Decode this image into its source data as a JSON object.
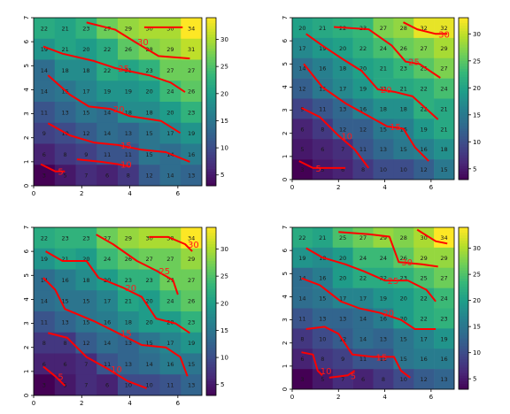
{
  "chart_data": [
    {
      "type": "heatmap",
      "title": "",
      "xlabel": "",
      "ylabel": "",
      "xlim": [
        0,
        7
      ],
      "ylim": [
        0,
        7
      ],
      "x_ticks": [
        "0",
        "2",
        "4",
        "6"
      ],
      "y_ticks": [
        "0",
        "1",
        "2",
        "3",
        "4",
        "5",
        "6",
        "7"
      ],
      "colorbar_ticks": [
        "5",
        "10",
        "15",
        "20",
        "25",
        "30"
      ],
      "value_range": [
        3,
        34
      ],
      "grid_values": [
        [
          "22",
          "21",
          "23",
          "27",
          "29",
          "30",
          "30",
          "34"
        ],
        [
          "19",
          "21",
          "20",
          "22",
          "26",
          "28",
          "29",
          "31"
        ],
        [
          "14",
          "18",
          "18",
          "22",
          "21",
          "23",
          "27",
          "27"
        ],
        [
          "14",
          "15",
          "17",
          "19",
          "19",
          "20",
          "24",
          "26"
        ],
        [
          "11",
          "13",
          "15",
          "14",
          "18",
          "18",
          "20",
          "23"
        ],
        [
          "9",
          "10",
          "12",
          "14",
          "13",
          "15",
          "17",
          "19"
        ],
        [
          "6",
          "8",
          "9",
          "11",
          "11",
          "15",
          "14",
          "16"
        ],
        [
          "3",
          "5",
          "7",
          "6",
          "8",
          "12",
          "14",
          "13"
        ]
      ],
      "contours": [
        {
          "label": "5",
          "points": [
            [
              0.3,
              0.9
            ],
            [
              0.9,
              0.6
            ],
            [
              1.3,
              0.6
            ]
          ]
        },
        {
          "label": "10",
          "points": [
            [
              1.8,
              1.1
            ],
            [
              2.8,
              1.0
            ],
            [
              3.5,
              0.9
            ],
            [
              4.0,
              0.8
            ]
          ]
        },
        {
          "label": "15",
          "points": [
            [
              0.6,
              2.6
            ],
            [
              1.5,
              2.1
            ],
            [
              2.5,
              1.8
            ],
            [
              3.5,
              1.7
            ],
            [
              4.5,
              1.5
            ],
            [
              5.5,
              1.4
            ],
            [
              6.5,
              1.0
            ]
          ]
        },
        {
          "label": "20",
          "points": [
            [
              0.6,
              4.6
            ],
            [
              1.5,
              3.8
            ],
            [
              2.3,
              3.3
            ],
            [
              3.2,
              3.2
            ],
            [
              4.0,
              2.9
            ],
            [
              5.3,
              2.7
            ],
            [
              6.1,
              2.2
            ]
          ]
        },
        {
          "label": "25",
          "points": [
            [
              0.4,
              5.8
            ],
            [
              1.2,
              5.5
            ],
            [
              2.5,
              5.2
            ],
            [
              3.4,
              4.9
            ],
            [
              4.8,
              4.6
            ],
            [
              5.7,
              4.3
            ],
            [
              6.3,
              3.9
            ]
          ]
        },
        {
          "label": "30",
          "points": [
            [
              2.2,
              6.8
            ],
            [
              3.4,
              6.5
            ],
            [
              4.2,
              6.0
            ],
            [
              5.2,
              5.4
            ],
            [
              6.5,
              5.3
            ]
          ]
        },
        {
          "label": "",
          "points": [
            [
              4.6,
              6.6
            ],
            [
              5.5,
              6.6
            ],
            [
              6.2,
              6.6
            ]
          ]
        }
      ]
    },
    {
      "type": "heatmap",
      "title": "",
      "xlabel": "",
      "ylabel": "",
      "xlim": [
        0,
        7
      ],
      "ylim": [
        0,
        7
      ],
      "x_ticks": [
        "0",
        "2",
        "4",
        "6"
      ],
      "y_ticks": [
        "0",
        "1",
        "2",
        "3",
        "4",
        "5",
        "6",
        "7"
      ],
      "colorbar_ticks": [
        "5",
        "10",
        "15",
        "20",
        "25",
        "30"
      ],
      "value_range": [
        3,
        33
      ],
      "grid_values": [
        [
          "20",
          "21",
          "22",
          "23",
          "27",
          "28",
          "32",
          "32"
        ],
        [
          "17",
          "19",
          "20",
          "22",
          "24",
          "26",
          "27",
          "29"
        ],
        [
          "14",
          "16",
          "18",
          "20",
          "21",
          "23",
          "25",
          "27"
        ],
        [
          "12",
          "15",
          "17",
          "19",
          "21",
          "21",
          "22",
          "24"
        ],
        [
          "9",
          "11",
          "13",
          "16",
          "18",
          "18",
          "22",
          "21"
        ],
        [
          "6",
          "8",
          "12",
          "12",
          "15",
          "16",
          "19",
          "21"
        ],
        [
          "5",
          "6",
          "7",
          "11",
          "13",
          "15",
          "16",
          "18"
        ],
        [
          "3",
          "5",
          "6",
          "8",
          "10",
          "10",
          "12",
          "15"
        ]
      ],
      "contours": [
        {
          "label": "5",
          "points": [
            [
              0.3,
              0.8
            ],
            [
              0.9,
              0.5
            ],
            [
              2.3,
              0.5
            ]
          ]
        },
        {
          "label": "10",
          "points": [
            [
              0.4,
              3.1
            ],
            [
              1.2,
              2.7
            ],
            [
              2.0,
              1.9
            ],
            [
              2.7,
              1.3
            ],
            [
              3.3,
              0.5
            ]
          ]
        },
        {
          "label": "15",
          "points": [
            [
              0.5,
              5.0
            ],
            [
              1.3,
              4.0
            ],
            [
              2.3,
              3.3
            ],
            [
              3.2,
              2.8
            ],
            [
              4.1,
              2.3
            ],
            [
              4.8,
              2.2
            ],
            [
              5.3,
              1.4
            ],
            [
              5.9,
              0.8
            ]
          ]
        },
        {
          "label": "20",
          "points": [
            [
              0.6,
              6.3
            ],
            [
              1.3,
              5.8
            ],
            [
              2.2,
              5.2
            ],
            [
              3.0,
              4.7
            ],
            [
              3.7,
              3.9
            ],
            [
              4.4,
              3.8
            ],
            [
              5.2,
              3.6
            ],
            [
              6.3,
              2.6
            ]
          ]
        },
        {
          "label": "25",
          "points": [
            [
              1.8,
              6.6
            ],
            [
              3.3,
              6.5
            ],
            [
              4.3,
              5.8
            ],
            [
              4.9,
              5.1
            ],
            [
              5.5,
              5.0
            ],
            [
              6.4,
              4.4
            ]
          ]
        },
        {
          "label": "30",
          "points": [
            [
              4.8,
              6.8
            ],
            [
              5.4,
              6.5
            ],
            [
              6.2,
              6.3
            ],
            [
              6.7,
              6.3
            ]
          ]
        }
      ]
    },
    {
      "type": "heatmap",
      "title": "",
      "xlabel": "",
      "ylabel": "",
      "xlim": [
        0,
        7
      ],
      "ylim": [
        0,
        7
      ],
      "x_ticks": [
        "0",
        "2",
        "4",
        "6"
      ],
      "y_ticks": [
        "0",
        "1",
        "2",
        "3",
        "4",
        "5",
        "6",
        "7"
      ],
      "colorbar_ticks": [
        "5",
        "10",
        "15",
        "20",
        "25",
        "30"
      ],
      "value_range": [
        3,
        34
      ],
      "grid_values": [
        [
          "22",
          "23",
          "23",
          "27",
          "29",
          "30",
          "30",
          "34"
        ],
        [
          "19",
          "21",
          "20",
          "24",
          "26",
          "27",
          "27",
          "29"
        ],
        [
          "14",
          "16",
          "18",
          "20",
          "23",
          "23",
          "27",
          "27"
        ],
        [
          "14",
          "15",
          "15",
          "17",
          "21",
          "20",
          "24",
          "26"
        ],
        [
          "11",
          "13",
          "15",
          "16",
          "18",
          "20",
          "20",
          "23"
        ],
        [
          "8",
          "8",
          "12",
          "14",
          "13",
          "15",
          "17",
          "19"
        ],
        [
          "6",
          "6",
          "7",
          "11",
          "13",
          "14",
          "16",
          "15"
        ],
        [
          "3",
          "5",
          "7",
          "6",
          "10",
          "10",
          "11",
          "13"
        ]
      ],
      "contours": [
        {
          "label": "5",
          "points": [
            [
              0.4,
              1.2
            ],
            [
              0.9,
              0.8
            ],
            [
              1.3,
              0.4
            ]
          ]
        },
        {
          "label": "10",
          "points": [
            [
              0.6,
              2.6
            ],
            [
              1.4,
              2.4
            ],
            [
              2.2,
              1.6
            ],
            [
              3.1,
              1.1
            ],
            [
              3.9,
              0.6
            ],
            [
              4.7,
              0.3
            ]
          ]
        },
        {
          "label": "15",
          "points": [
            [
              0.4,
              4.9
            ],
            [
              0.9,
              4.4
            ],
            [
              1.3,
              3.6
            ],
            [
              2.5,
              3.1
            ],
            [
              3.5,
              2.6
            ],
            [
              4.5,
              2.1
            ],
            [
              5.5,
              2.0
            ],
            [
              6.1,
              1.6
            ],
            [
              6.4,
              0.8
            ]
          ]
        },
        {
          "label": "20",
          "points": [
            [
              0.5,
              6.0
            ],
            [
              1.2,
              5.6
            ],
            [
              2.2,
              5.6
            ],
            [
              2.7,
              4.9
            ],
            [
              3.7,
              4.5
            ],
            [
              4.5,
              4.1
            ],
            [
              5.1,
              3.2
            ],
            [
              5.9,
              3.0
            ],
            [
              6.5,
              2.6
            ]
          ]
        },
        {
          "label": "25",
          "points": [
            [
              2.6,
              6.7
            ],
            [
              3.3,
              6.3
            ],
            [
              4.3,
              5.6
            ],
            [
              5.1,
              5.2
            ],
            [
              5.8,
              4.8
            ],
            [
              6.0,
              4.2
            ]
          ]
        },
        {
          "label": "30",
          "points": [
            [
              4.8,
              6.6
            ],
            [
              5.6,
              6.6
            ],
            [
              6.3,
              6.3
            ],
            [
              6.6,
              6.0
            ]
          ]
        }
      ]
    },
    {
      "type": "heatmap",
      "title": "",
      "xlabel": "",
      "ylabel": "",
      "xlim": [
        0,
        7
      ],
      "ylim": [
        0,
        7
      ],
      "x_ticks": [
        "0",
        "2",
        "4",
        "6"
      ],
      "y_ticks": [
        "0",
        "1",
        "2",
        "3",
        "4",
        "5",
        "6",
        "7"
      ],
      "colorbar_ticks": [
        "5",
        "10",
        "15",
        "20",
        "25",
        "30"
      ],
      "value_range": [
        3,
        34
      ],
      "grid_values": [
        [
          "22",
          "21",
          "25",
          "27",
          "29",
          "28",
          "30",
          "34"
        ],
        [
          "19",
          "18",
          "20",
          "24",
          "24",
          "26",
          "29",
          "29"
        ],
        [
          "14",
          "16",
          "20",
          "22",
          "22",
          "23",
          "25",
          "27"
        ],
        [
          "14",
          "15",
          "17",
          "17",
          "19",
          "20",
          "22",
          "24"
        ],
        [
          "11",
          "13",
          "13",
          "14",
          "16",
          "20",
          "22",
          "23"
        ],
        [
          "8",
          "10",
          "12",
          "14",
          "13",
          "15",
          "17",
          "19"
        ],
        [
          "6",
          "8",
          "9",
          "11",
          "11",
          "15",
          "16",
          "16"
        ],
        [
          "3",
          "5",
          "7",
          "6",
          "8",
          "10",
          "12",
          "13"
        ]
      ],
      "contours": [
        {
          "label": "5",
          "points": [
            [
              1.6,
              0.5
            ],
            [
              2.4,
              0.6
            ],
            [
              2.7,
              0.8
            ]
          ]
        },
        {
          "label": "10",
          "points": [
            [
              0.4,
              1.6
            ],
            [
              0.9,
              1.5
            ],
            [
              1.1,
              0.8
            ],
            [
              1.3,
              0.6
            ]
          ]
        },
        {
          "label": "15",
          "points": [
            [
              0.6,
              2.6
            ],
            [
              1.4,
              2.7
            ],
            [
              2.0,
              2.4
            ],
            [
              2.6,
              1.5
            ],
            [
              3.5,
              1.4
            ],
            [
              4.4,
              1.4
            ],
            [
              4.7,
              0.8
            ],
            [
              5.1,
              0.5
            ]
          ]
        },
        {
          "label": "20",
          "points": [
            [
              0.4,
              4.8
            ],
            [
              1.2,
              4.5
            ],
            [
              2.1,
              3.8
            ],
            [
              2.9,
              3.5
            ],
            [
              3.8,
              3.3
            ],
            [
              4.7,
              3.0
            ],
            [
              5.3,
              2.6
            ],
            [
              6.2,
              2.6
            ]
          ]
        },
        {
          "label": "25",
          "points": [
            [
              0.6,
              6.1
            ],
            [
              1.3,
              5.7
            ],
            [
              2.3,
              5.4
            ],
            [
              3.1,
              5.1
            ],
            [
              4.0,
              4.7
            ],
            [
              5.0,
              4.7
            ],
            [
              5.8,
              4.3
            ],
            [
              6.2,
              3.8
            ]
          ]
        },
        {
          "label": "30",
          "points": [
            [
              2.0,
              6.8
            ],
            [
              3.3,
              6.7
            ],
            [
              4.2,
              6.6
            ],
            [
              4.6,
              5.5
            ],
            [
              5.6,
              5.4
            ],
            [
              6.3,
              5.3
            ]
          ]
        },
        {
          "label": "",
          "points": [
            [
              5.4,
              6.9
            ],
            [
              6.2,
              6.4
            ],
            [
              6.7,
              6.3
            ]
          ]
        }
      ]
    }
  ]
}
